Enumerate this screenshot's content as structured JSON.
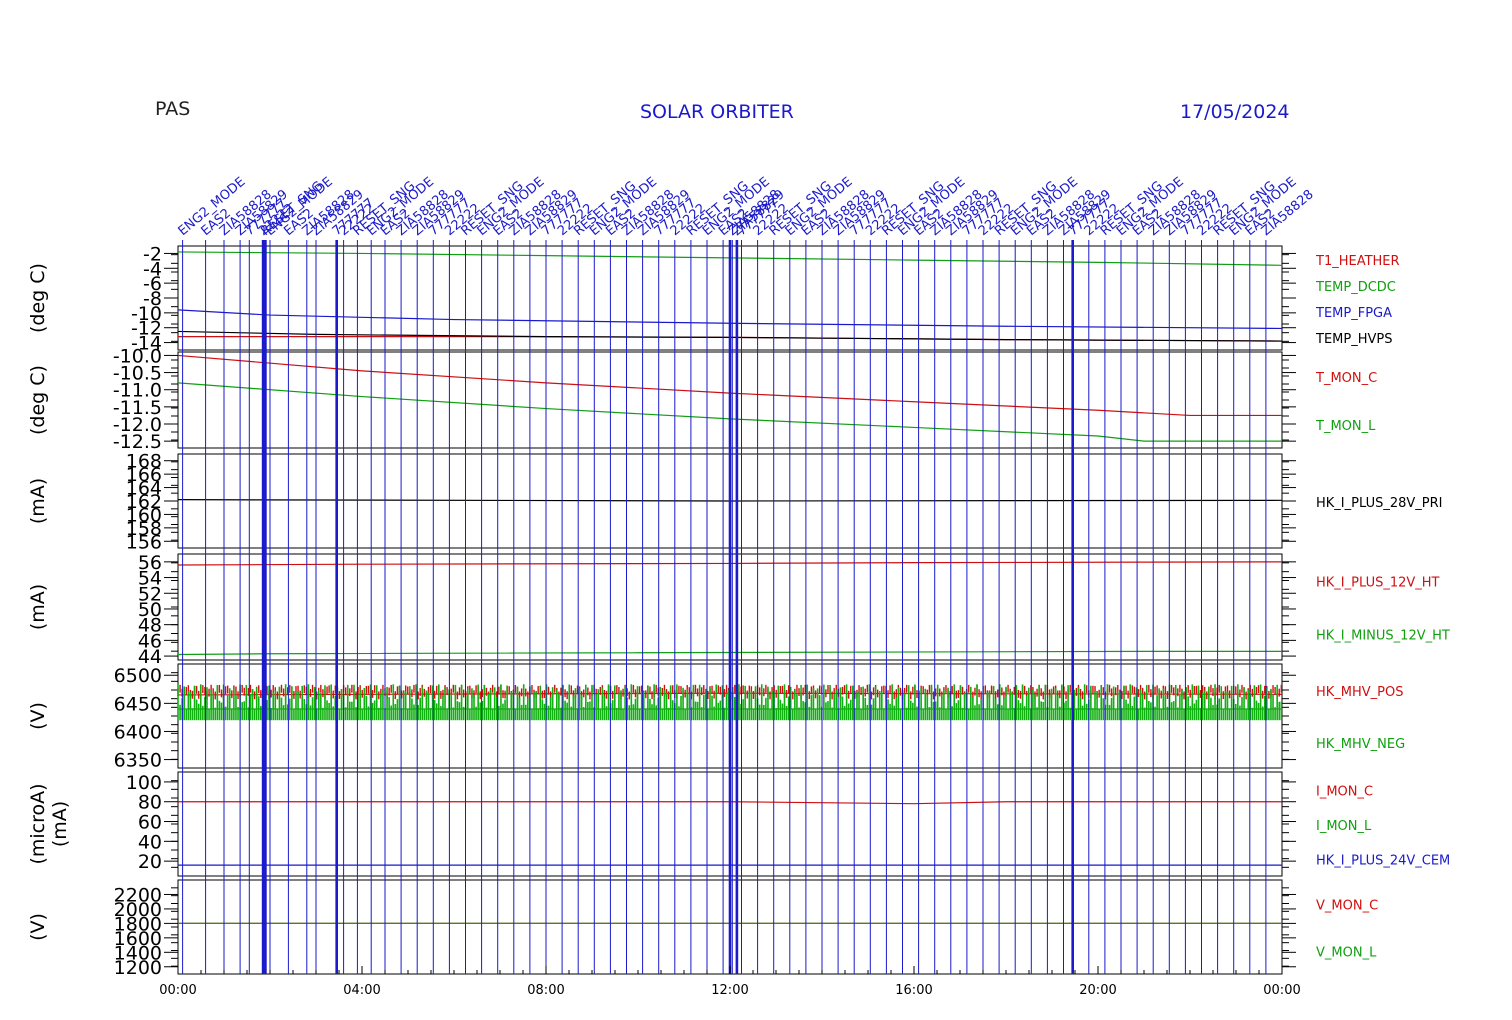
{
  "header": {
    "instrument": "PAS",
    "mission_text": "SOLAR ORBITER",
    "date_text": "17/05/2024"
  },
  "x_axis": {
    "ticks": [
      "00:00",
      "04:00",
      "08:00",
      "12:00",
      "16:00",
      "20:00",
      "00:00"
    ],
    "range_hours": [
      0,
      24
    ]
  },
  "event_labels": {
    "color": "#1a1acc",
    "texts": [
      "ENG2_MODE",
      "EAS2",
      "ZIA58828",
      "ZIA58829",
      "777777",
      "22222",
      "RESET_SNG"
    ],
    "positions_hours": [
      0.1,
      0.6,
      1.0,
      1.35,
      1.55,
      1.85,
      1.9,
      2.0,
      2.4,
      2.8,
      3.0,
      3.45,
      3.6,
      3.9,
      4.2,
      4.5,
      4.85,
      5.2,
      5.55,
      5.9,
      6.25,
      6.6,
      6.95,
      7.3,
      7.65,
      8.0,
      8.35,
      8.7,
      9.05,
      9.4,
      9.75,
      10.1,
      10.45,
      10.8,
      11.15,
      11.5,
      11.85,
      12.05,
      12.15,
      12.25,
      12.6,
      12.95,
      13.3,
      13.65,
      14.0,
      14.35,
      14.7,
      15.05,
      15.4,
      15.75,
      16.1,
      16.45,
      16.8,
      17.15,
      17.5,
      17.85,
      18.2,
      18.55,
      18.9,
      19.25,
      19.45,
      19.8,
      20.15,
      20.5,
      20.85,
      21.2,
      21.55,
      21.9,
      22.25,
      22.6,
      22.95,
      23.3,
      23.65
    ],
    "bold_positions_hours": [
      1.85,
      1.9,
      3.45,
      12.0,
      12.15,
      19.45
    ]
  },
  "chart_data": [
    {
      "type": "line",
      "ylabel": "(deg C)",
      "yticks": [
        "-2",
        "-4",
        "-6",
        "-8",
        "-10",
        "-12",
        "-14"
      ],
      "ylim": [
        -15,
        -1
      ],
      "series": [
        {
          "name": "T1_HEATHER",
          "color": "#d01010",
          "x": [
            0,
            7,
            12,
            18,
            24
          ],
          "values": [
            -13.2,
            -13.2,
            -13.3,
            -13.6,
            -13.8
          ]
        },
        {
          "name": "TEMP_DCDC",
          "color": "#10a010",
          "x": [
            0,
            4,
            8,
            12,
            16,
            20,
            24
          ],
          "values": [
            -1.8,
            -2.0,
            -2.3,
            -2.6,
            -2.9,
            -3.2,
            -3.6
          ]
        },
        {
          "name": "TEMP_FPGA",
          "color": "#1a1acc",
          "x": [
            0,
            2,
            6,
            12,
            18,
            24
          ],
          "values": [
            -9.6,
            -10.3,
            -10.9,
            -11.4,
            -11.8,
            -12.1
          ]
        },
        {
          "name": "TEMP_HVPS",
          "color": "#000000",
          "x": [
            0,
            3,
            8,
            12,
            18,
            24
          ],
          "values": [
            -12.5,
            -12.9,
            -13.2,
            -13.3,
            -13.6,
            -13.8
          ]
        }
      ]
    },
    {
      "type": "line",
      "ylabel": "(deg C)",
      "yticks": [
        "-10.0",
        "-10.5",
        "-11.0",
        "-11.5",
        "-12.0",
        "-12.5"
      ],
      "ylim": [
        -12.7,
        -9.9
      ],
      "series": [
        {
          "name": "T_MON_C",
          "color": "#d01010",
          "x": [
            0,
            4,
            8,
            12,
            16,
            20,
            22,
            24
          ],
          "values": [
            -10.0,
            -10.45,
            -10.8,
            -11.1,
            -11.35,
            -11.6,
            -11.75,
            -11.75
          ]
        },
        {
          "name": "T_MON_L",
          "color": "#10a010",
          "x": [
            0,
            4,
            8,
            12,
            16,
            20,
            21,
            24
          ],
          "values": [
            -10.8,
            -11.2,
            -11.55,
            -11.85,
            -12.1,
            -12.35,
            -12.5,
            -12.5
          ]
        }
      ]
    },
    {
      "type": "line",
      "ylabel": "(mA)",
      "yticks": [
        "168",
        "166",
        "164",
        "162",
        "160",
        "158",
        "156"
      ],
      "ylim": [
        155,
        169
      ],
      "series": [
        {
          "name": "HK_I_PLUS_28V_PRI",
          "color": "#000000",
          "x": [
            0,
            12,
            24
          ],
          "values": [
            162.2,
            162.0,
            162.1
          ]
        }
      ]
    },
    {
      "type": "line",
      "ylabel": "(mA)",
      "yticks": [
        "56",
        "54",
        "52",
        "50",
        "48",
        "46",
        "44"
      ],
      "ylim": [
        43.5,
        57
      ],
      "series": [
        {
          "name": "HK_I_PLUS_12V_HT",
          "color": "#d01010",
          "x": [
            0,
            4,
            12,
            16,
            24
          ],
          "values": [
            55.6,
            55.7,
            55.8,
            55.9,
            56.0
          ]
        },
        {
          "name": "HK_I_MINUS_12V_HT",
          "color": "#10a010",
          "x": [
            0,
            2,
            21,
            24
          ],
          "values": [
            44.2,
            44.3,
            44.6,
            44.6
          ]
        }
      ]
    },
    {
      "type": "line",
      "ylabel": "(V)",
      "yticks": [
        "6500",
        "6450",
        "6400",
        "6350"
      ],
      "ylim": [
        6335,
        6520
      ],
      "series": [
        {
          "name": "HK_MHV_POS",
          "color": "#d01010",
          "x": [
            0,
            12,
            24
          ],
          "values": [
            6465,
            6468,
            6466
          ]
        },
        {
          "name": "HK_MHV_NEG",
          "color": "#10a010",
          "x": [
            0,
            12,
            24
          ],
          "values": [
            6440,
            6440,
            6440
          ]
        }
      ]
    },
    {
      "type": "line",
      "ylabel": "(microA)",
      "ylabel2": "(mA)",
      "yticks": [
        "100",
        "80",
        "60",
        "40",
        "20"
      ],
      "ylim": [
        5,
        110
      ],
      "series": [
        {
          "name": "I_MON_C",
          "color": "#d01010",
          "x": [
            0,
            12,
            16,
            18,
            24
          ],
          "values": [
            80,
            80,
            78,
            80,
            80
          ]
        },
        {
          "name": "I_MON_L",
          "color": "#10a010",
          "x": [],
          "values": []
        },
        {
          "name": "HK_I_PLUS_24V_CEM",
          "color": "#1a1acc",
          "x": [
            0,
            12,
            24
          ],
          "values": [
            16,
            16,
            16
          ]
        }
      ]
    },
    {
      "type": "line",
      "ylabel": "(V)",
      "yticks": [
        "2200",
        "2000",
        "1800",
        "1600",
        "1400",
        "1200"
      ],
      "ylim": [
        1100,
        2400
      ],
      "series": [
        {
          "name": "V_MON_C",
          "color": "#d01010",
          "x": [
            0,
            24
          ],
          "values": [
            1800,
            1800
          ]
        },
        {
          "name": "V_MON_L",
          "color": "#10a010",
          "x": [
            0,
            24
          ],
          "values": [
            1800,
            1800
          ]
        }
      ]
    }
  ]
}
